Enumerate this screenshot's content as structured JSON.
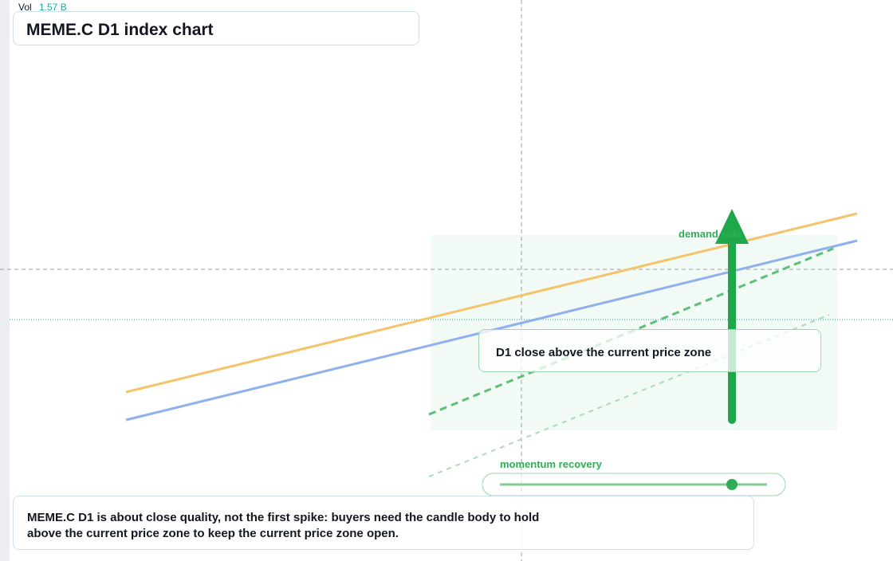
{
  "header": {
    "volume_label": "Vol",
    "volume_value": "1.57 B",
    "title": "MEME.C D1 index chart"
  },
  "annotations": {
    "demand": "demand side",
    "callout": "D1 close above the current price zone",
    "momentum": "momentum recovery"
  },
  "note": {
    "line1": "MEME.C D1 is about close quality, not the first spike: buyers need the candle body to hold",
    "line2": "above the current price zone to keep the current price zone open."
  }
}
